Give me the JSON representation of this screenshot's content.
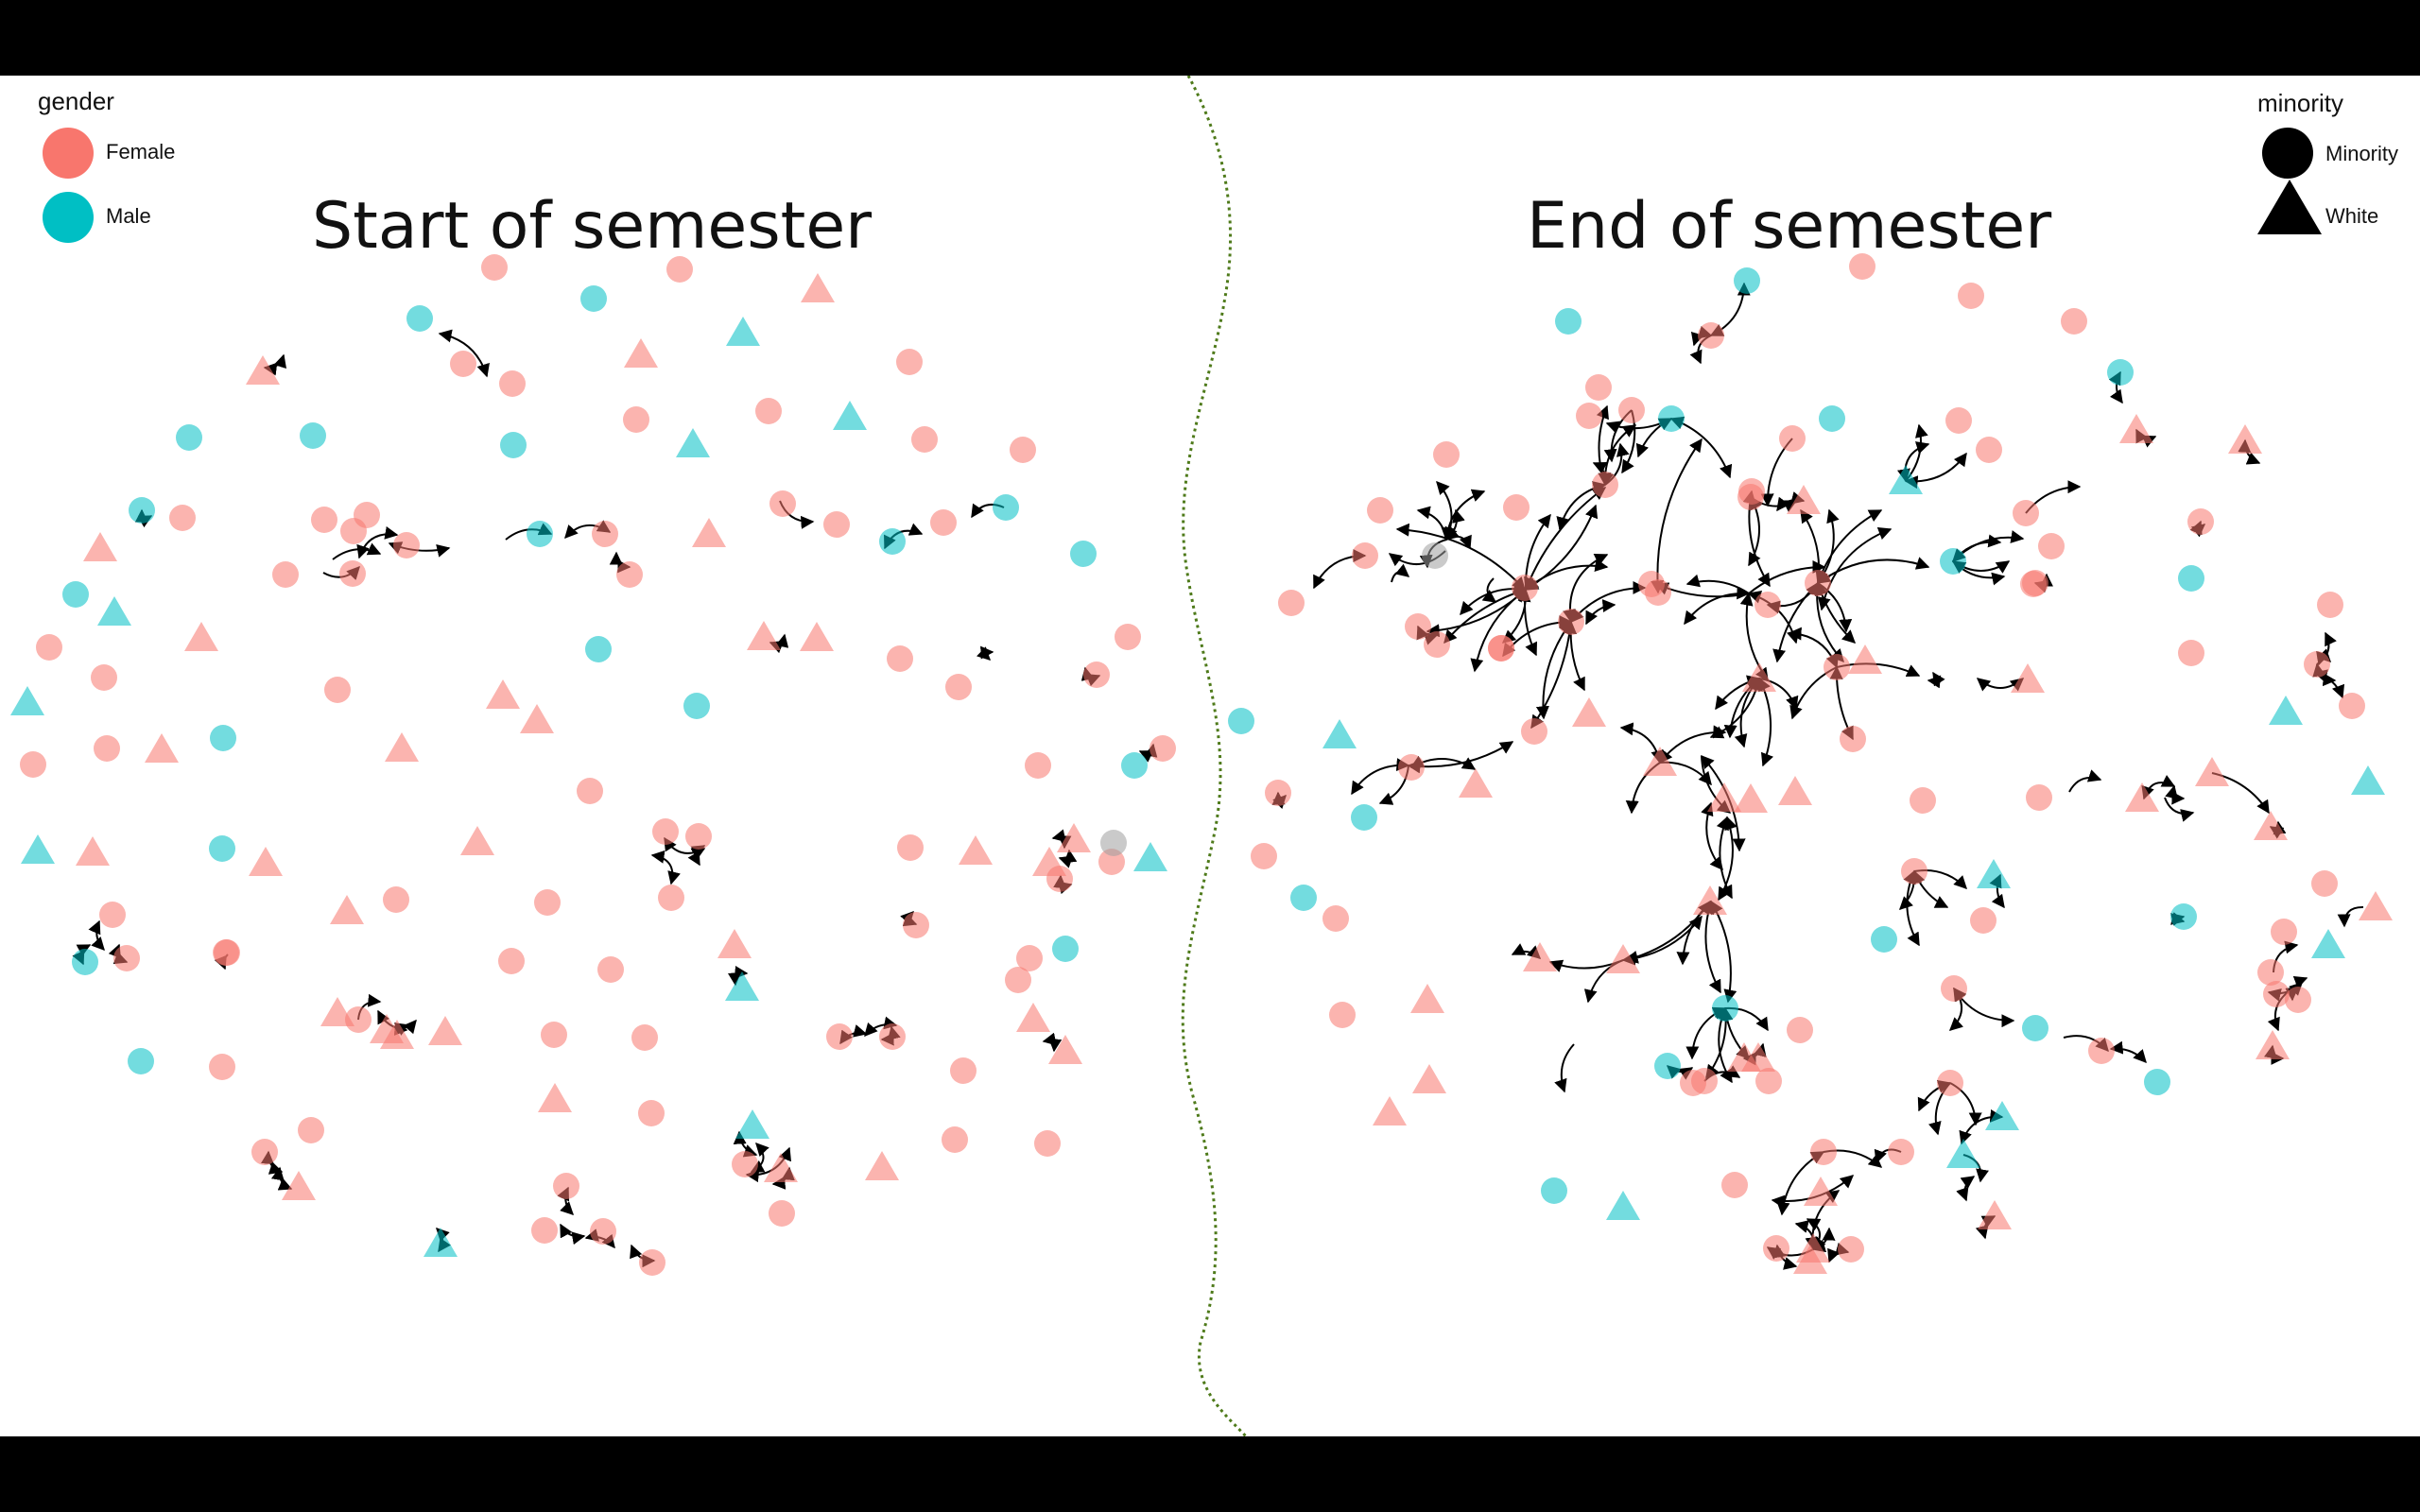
{
  "titles": {
    "left": "Start of semester",
    "right": "End of semester"
  },
  "legend_gender": {
    "title": "gender",
    "items": [
      {
        "label": "Female",
        "color": "#F8766D"
      },
      {
        "label": "Male",
        "color": "#00BFC4"
      }
    ]
  },
  "legend_minority": {
    "title": "minority",
    "items": [
      {
        "label": "Minority",
        "shape": "circle"
      },
      {
        "label": "White",
        "shape": "triangle"
      }
    ]
  },
  "colors": {
    "female": "#F8766D",
    "male": "#00BFC4",
    "unknown": "#9E9E9E",
    "divider": "#4E7A1A",
    "edge": "#000000"
  }
}
